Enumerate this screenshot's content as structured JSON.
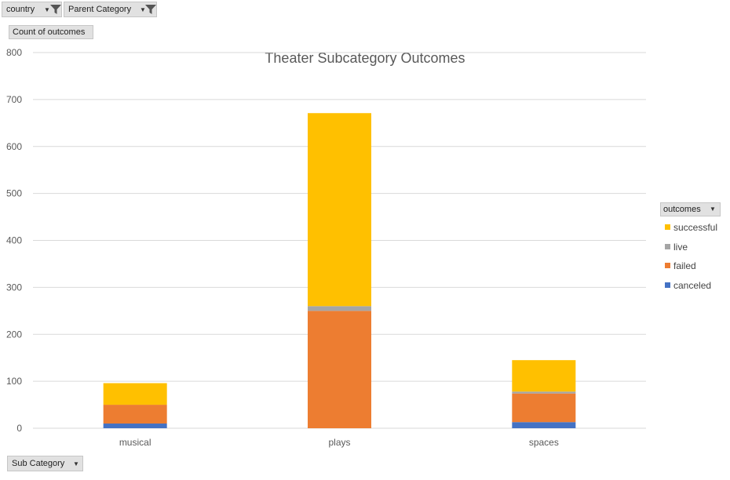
{
  "filters": {
    "country": "country",
    "parent_category": "Parent Category"
  },
  "value_field": "Count of outcomes",
  "axis_field": "Sub Category",
  "legend_field": "outcomes",
  "chart_data": {
    "type": "bar",
    "stacked": true,
    "title": "Theater Subcategory Outcomes",
    "xlabel": "",
    "ylabel": "",
    "categories": [
      "musical",
      "plays",
      "spaces"
    ],
    "ylim": [
      0,
      800
    ],
    "yticks": [
      0,
      100,
      200,
      300,
      400,
      500,
      600,
      700,
      800
    ],
    "grid": true,
    "legend_position": "right",
    "series": [
      {
        "name": "canceled",
        "color": "#4472c4",
        "values": [
          10,
          0,
          13
        ]
      },
      {
        "name": "failed",
        "color": "#ed7d31",
        "values": [
          40,
          250,
          61
        ]
      },
      {
        "name": "live",
        "color": "#a5a5a5",
        "values": [
          0,
          10,
          4
        ]
      },
      {
        "name": "successful",
        "color": "#ffc000",
        "values": [
          46,
          411,
          67
        ]
      }
    ],
    "legend_order": [
      "successful",
      "live",
      "failed",
      "canceled"
    ]
  }
}
